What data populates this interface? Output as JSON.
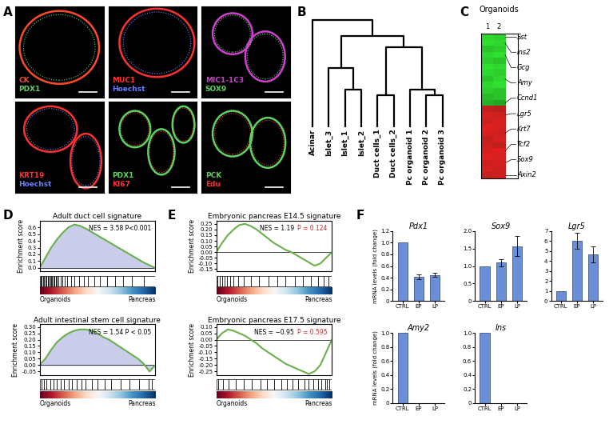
{
  "panel_labels": [
    "A",
    "B",
    "C",
    "D",
    "E",
    "F"
  ],
  "images": [
    {
      "labels": [
        {
          "text": "CK",
          "color": "#ff4a2a"
        },
        {
          "text": "PDX1",
          "color": "#5fd35f"
        }
      ]
    },
    {
      "labels": [
        {
          "text": "MUC1",
          "color": "#ff3030"
        },
        {
          "text": "Hoechst",
          "color": "#6a7cff"
        }
      ]
    },
    {
      "labels": [
        {
          "text": "MIC1-1C3",
          "color": "#d040d0"
        },
        {
          "text": "SOX9",
          "color": "#5fd35f"
        }
      ]
    },
    {
      "labels": [
        {
          "text": "KRT19",
          "color": "#ff3030"
        },
        {
          "text": "Hoechst",
          "color": "#6a7cff"
        }
      ]
    },
    {
      "labels": [
        {
          "text": "PDX1",
          "color": "#5fd35f"
        },
        {
          "text": "KI67",
          "color": "#ff3030"
        }
      ]
    },
    {
      "labels": [
        {
          "text": "PCK",
          "color": "#5fd35f"
        },
        {
          "text": "Edu",
          "color": "#ff3030"
        }
      ]
    }
  ],
  "dendrogram": {
    "leaves": [
      "Acinar",
      "Islet_3",
      "Islet_1",
      "Islet_2",
      "Duct cells_1",
      "Duct cells_2",
      "Pc organoid 1",
      "Pc organoid 2",
      "Pc organoid 3"
    ],
    "merges": [
      [
        2,
        3,
        0.35
      ],
      [
        1,
        9,
        0.55
      ],
      [
        4,
        5,
        0.3
      ],
      [
        7,
        8,
        0.3
      ],
      [
        6,
        12,
        0.35
      ],
      [
        11,
        13,
        0.75
      ],
      [
        10,
        14,
        0.85
      ],
      [
        0,
        15,
        1.0
      ]
    ]
  },
  "chart_data": [
    {
      "type": "heatmap",
      "title": "Organoids",
      "columns": [
        "1",
        "2"
      ],
      "tick_labels": "x",
      "cells": [
        [
          -0.9,
          -0.85
        ],
        [
          -0.95,
          -0.9
        ],
        [
          -0.8,
          -0.85
        ],
        [
          -0.9,
          -0.95
        ],
        [
          -0.85,
          -0.8
        ],
        [
          -0.95,
          -0.9
        ],
        [
          -0.9,
          -0.85
        ],
        [
          -0.8,
          -0.9
        ],
        [
          -0.9,
          -0.95
        ],
        [
          -0.85,
          -0.8
        ],
        [
          -0.75,
          -0.8
        ],
        [
          -0.7,
          -0.65
        ],
        [
          0.8,
          0.75
        ],
        [
          0.9,
          0.85
        ],
        [
          0.85,
          0.9
        ],
        [
          0.95,
          0.9
        ],
        [
          0.9,
          0.85
        ],
        [
          0.8,
          0.9
        ],
        [
          0.85,
          0.8
        ],
        [
          0.9,
          0.95
        ],
        [
          0.95,
          0.9
        ],
        [
          0.85,
          0.9
        ],
        [
          0.9,
          0.85
        ],
        [
          0.8,
          0.85
        ]
      ],
      "row_labels": [
        {
          "label": "Sst",
          "row": 0
        },
        {
          "label": "Ins2",
          "row": 1
        },
        {
          "label": "Gcg",
          "row": 3
        },
        {
          "label": "Amy",
          "row": 7
        },
        {
          "label": "Ccnd1",
          "row": 11
        },
        {
          "label": "Lgr5",
          "row": 13
        },
        {
          "label": "Krt7",
          "row": 16
        },
        {
          "label": "Tcf2",
          "row": 19
        },
        {
          "label": "Sox9",
          "row": 21
        },
        {
          "label": "Axin2",
          "row": 23
        }
      ]
    },
    {
      "type": "area",
      "title": "Adult duct cell signature",
      "ylabel": "Enrichment score",
      "color": "#6ab04c",
      "x": [
        0,
        5,
        10,
        15,
        20,
        25,
        30,
        35,
        40,
        45,
        50,
        55,
        60,
        65,
        70,
        75,
        80,
        85,
        90,
        95,
        100
      ],
      "values": [
        0,
        0.15,
        0.3,
        0.42,
        0.52,
        0.6,
        0.64,
        0.62,
        0.58,
        0.53,
        0.48,
        0.43,
        0.38,
        0.33,
        0.28,
        0.23,
        0.18,
        0.13,
        0.08,
        0.04,
        0
      ],
      "xlim": [
        0,
        100
      ],
      "xticks": [],
      "ylim": [
        -0.05,
        0.7
      ],
      "yticks": [
        {
          "value": 0,
          "label": "0.0"
        },
        0.1,
        0.2,
        0.3,
        0.4,
        0.5,
        0.6
      ],
      "tick_labels": "y",
      "hits": [
        1,
        2,
        3,
        4,
        5,
        6,
        7,
        8,
        9,
        10,
        11,
        12,
        13,
        14,
        15,
        16,
        18,
        20,
        22,
        24,
        27,
        30,
        34,
        38,
        42,
        47,
        52,
        58,
        65,
        72,
        80,
        90
      ],
      "annotations": [
        {
          "text": "NES = 3.58 P<0.001",
          "color": "#000000"
        }
      ],
      "gradient_labels": [
        "Organoids",
        "Pancreas"
      ]
    },
    {
      "type": "area",
      "title": "Adult intestinal stem cell signature",
      "ylabel": "Enrichment score",
      "color": "#6ab04c",
      "x": [
        0,
        5,
        10,
        15,
        20,
        25,
        30,
        35,
        40,
        45,
        50,
        55,
        60,
        65,
        70,
        75,
        80,
        85,
        90,
        95,
        100
      ],
      "values": [
        0,
        0.05,
        0.12,
        0.18,
        0.22,
        0.25,
        0.27,
        0.28,
        0.28,
        0.27,
        0.25,
        0.22,
        0.2,
        0.17,
        0.14,
        0.11,
        0.08,
        0.05,
        0.01,
        -0.05,
        0
      ],
      "xlim": [
        0,
        100
      ],
      "xticks": [],
      "ylim": [
        -0.08,
        0.32
      ],
      "yticks": [
        -0.05,
        {
          "value": 0,
          "label": "0.00"
        },
        0.05,
        {
          "value": 0.1,
          "label": "0.10"
        },
        0.15,
        {
          "value": 0.2,
          "label": "0.20"
        },
        0.25,
        {
          "value": 0.3,
          "label": "0.30"
        }
      ],
      "tick_labels": "y",
      "hits": [
        2,
        4,
        6,
        9,
        12,
        15,
        18,
        21,
        25,
        28,
        32,
        36,
        40,
        45,
        50,
        56,
        62,
        70,
        78,
        86,
        94,
        97
      ],
      "annotations": [
        {
          "text": "NES = 1.54 P < 0.05",
          "color": "#000000"
        }
      ],
      "gradient_labels": [
        "Organoids",
        "Pancreas"
      ]
    },
    {
      "type": "line",
      "title": "Embryonic pancreas E14.5 signature",
      "ylabel": "Enrichment score",
      "color": "#6ab04c",
      "x": [
        0,
        5,
        10,
        15,
        20,
        25,
        30,
        35,
        40,
        45,
        50,
        55,
        60,
        65,
        70,
        75,
        80,
        85,
        90,
        95,
        100
      ],
      "values": [
        0,
        0.08,
        0.15,
        0.2,
        0.24,
        0.25,
        0.23,
        0.2,
        0.16,
        0.12,
        0.08,
        0.05,
        0.02,
        0,
        -0.03,
        -0.06,
        -0.09,
        -0.12,
        -0.1,
        -0.05,
        0
      ],
      "xlim": [
        0,
        100
      ],
      "xticks": [],
      "ylim": [
        -0.17,
        0.28
      ],
      "yticks": [
        -0.15,
        {
          "value": -0.1,
          "label": "-0.10"
        },
        -0.05,
        {
          "value": 0,
          "label": "0.00"
        },
        0.05,
        {
          "value": 0.1,
          "label": "0.10"
        },
        0.15,
        {
          "value": 0.2,
          "label": "0.20"
        },
        0.25
      ],
      "tick_labels": "y",
      "hits": [
        1,
        3,
        5,
        7,
        9,
        12,
        15,
        19,
        24,
        30,
        37,
        45,
        53,
        60,
        68,
        75,
        82,
        88,
        93,
        97
      ],
      "annotations": [
        {
          "text": "NES = 1.19",
          "color": "#000000"
        },
        {
          "text": "P = 0.124",
          "color": "#e02020"
        }
      ],
      "gradient_labels": [
        "Organoids",
        "Pancreas"
      ]
    },
    {
      "type": "line",
      "title": "Embryonic pancreas E17.5 signature",
      "ylabel": "Enrichment score",
      "color": "#6ab04c",
      "x": [
        0,
        5,
        10,
        15,
        20,
        25,
        30,
        35,
        40,
        45,
        50,
        55,
        60,
        65,
        70,
        75,
        80,
        85,
        90,
        95,
        100
      ],
      "values": [
        0,
        0.05,
        0.08,
        0.07,
        0.05,
        0.03,
        0,
        -0.03,
        -0.07,
        -0.1,
        -0.13,
        -0.16,
        -0.19,
        -0.21,
        -0.23,
        -0.25,
        -0.27,
        -0.25,
        -0.2,
        -0.1,
        0
      ],
      "xlim": [
        0,
        100
      ],
      "xticks": [],
      "ylim": [
        -0.28,
        0.12
      ],
      "yticks": [
        -0.25,
        {
          "value": -0.2,
          "label": "-0.20"
        },
        -0.15,
        {
          "value": -0.1,
          "label": "-0.10"
        },
        -0.05,
        {
          "value": 0,
          "label": "0.00"
        },
        0.05,
        {
          "value": 0.1,
          "label": "0.10"
        }
      ],
      "tick_labels": "y",
      "hits": [
        2,
        6,
        11,
        17,
        24,
        31,
        38,
        44,
        50,
        56,
        61,
        66,
        71,
        76,
        80,
        84,
        88,
        91,
        94,
        96,
        98
      ],
      "annotations": [
        {
          "text": "NES = −0.95",
          "color": "#000000"
        },
        {
          "text": "P = 0.595",
          "color": "#e02020"
        }
      ],
      "gradient_labels": [
        "Organoids",
        "Pancreas"
      ]
    },
    {
      "type": "bar",
      "title": "Pdx1",
      "ylabel": "mRNA levels (fold change)",
      "categories": [
        "CTRL",
        "EP",
        "LP"
      ],
      "values": [
        1.0,
        0.42,
        0.45
      ],
      "errors": [
        0,
        0.04,
        0.04
      ],
      "color": "#6b8fd6",
      "ylim": [
        0,
        1.2
      ],
      "yticks": [
        0,
        0.2,
        0.4,
        0.6,
        0.8,
        {
          "value": 1,
          "label": "1.0"
        },
        1.2
      ]
    },
    {
      "type": "bar",
      "title": "Sox9",
      "categories": [
        "CTRL",
        "EP",
        "LP"
      ],
      "values": [
        1.0,
        1.1,
        1.57
      ],
      "errors": [
        0,
        0.1,
        0.28
      ],
      "color": "#6b8fd6",
      "ylim": [
        0,
        2
      ],
      "yticks": [
        0,
        0.5,
        {
          "value": 1,
          "label": "1.0"
        },
        1.5,
        {
          "value": 2,
          "label": "2.0"
        }
      ]
    },
    {
      "type": "bar",
      "title": "Lgr5",
      "categories": [
        "CTRL",
        "EP",
        "LP"
      ],
      "values": [
        1.0,
        6.0,
        4.7
      ],
      "errors": [
        0,
        0.8,
        0.8
      ],
      "color": "#6b8fd6",
      "ylim": [
        0,
        7
      ],
      "yticks": [
        0,
        1,
        2,
        3,
        4,
        5,
        6,
        7
      ]
    },
    {
      "type": "bar",
      "title": "Amy2",
      "ylabel": "mRNA levels (fold change)",
      "categories": [
        "CTRL",
        "EP",
        "LP"
      ],
      "values": [
        1.0,
        0,
        0
      ],
      "errors": [
        0,
        0,
        0
      ],
      "color": "#6b8fd6",
      "ylim": [
        0,
        1
      ],
      "yticks": [
        0,
        0.2,
        0.4,
        0.6,
        0.8,
        {
          "value": 1,
          "label": "1.0"
        }
      ]
    },
    {
      "type": "bar",
      "title": "Ins",
      "categories": [
        "CTRL",
        "EP",
        "LP"
      ],
      "values": [
        1.0,
        0,
        0
      ],
      "errors": [
        0,
        0,
        0
      ],
      "color": "#6b8fd6",
      "ylim": [
        0,
        1
      ],
      "yticks": [
        0,
        0.2,
        0.4,
        0.6,
        0.8,
        {
          "value": 1,
          "label": "1.0"
        }
      ]
    }
  ]
}
